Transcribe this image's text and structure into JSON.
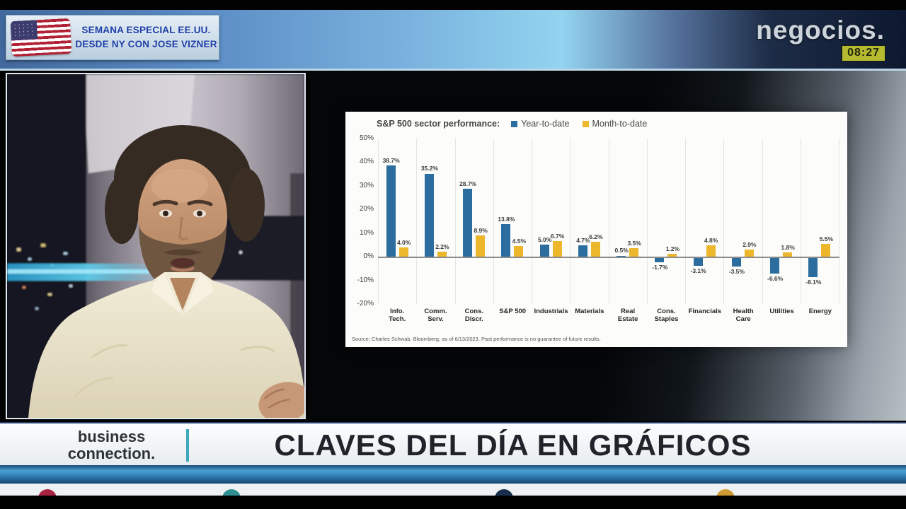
{
  "header": {
    "badge": {
      "line1": "SEMANA ESPECIAL EE.UU.",
      "line2": "DESDE NY CON JOSE VIZNER"
    },
    "channel": {
      "logo": "negocios.",
      "time": "08:27"
    }
  },
  "chart_data": {
    "type": "bar",
    "title": "S&P 500 sector performance:",
    "categories": [
      [
        "Info.",
        "Tech."
      ],
      [
        "Comm.",
        "Serv."
      ],
      [
        "Cons.",
        "Discr."
      ],
      [
        "S&P 500"
      ],
      [
        "Industrials"
      ],
      [
        "Materials"
      ],
      [
        "Real",
        "Estate"
      ],
      [
        "Cons.",
        "Staples"
      ],
      [
        "Financials"
      ],
      [
        "Health",
        "Care"
      ],
      [
        "Utilities"
      ],
      [
        "Energy"
      ]
    ],
    "series": [
      {
        "name": "Year-to-date",
        "color": "#2a6d9e",
        "values": [
          38.7,
          35.2,
          28.7,
          13.8,
          5.0,
          4.7,
          0.5,
          -1.7,
          -3.1,
          -3.5,
          -6.6,
          -8.1
        ]
      },
      {
        "name": "Month-to-date",
        "color": "#edb72c",
        "values": [
          4.0,
          2.2,
          8.9,
          4.5,
          6.7,
          6.2,
          3.5,
          1.2,
          4.8,
          2.9,
          1.8,
          5.5
        ]
      }
    ],
    "ylim": [
      -20,
      50
    ],
    "yticks": [
      "50%",
      "40%",
      "30%",
      "20%",
      "10%",
      "0%",
      "-10%",
      "-20%"
    ],
    "grid": "vertical-separators",
    "legend_position": "top",
    "source": "Source: Charles Schwab, Bloomberg, as of 6/13/2023. Past performance is no guarantee of future results."
  },
  "footer": {
    "brand_line1": "business",
    "brand_line2": "connection.",
    "headline": "CLAVES DEL DÍA EN GRÁFICOS"
  },
  "ticker": {
    "dot_colors": [
      "#a82342",
      "#2f8f93",
      "#18304c",
      "#cf9a33"
    ]
  },
  "colors": {
    "ytd_bar": "#2a6d9e",
    "mtd_bar": "#edb72c",
    "clock_badge": "#b6ba30",
    "separator_teal": "#3fa8bc"
  }
}
